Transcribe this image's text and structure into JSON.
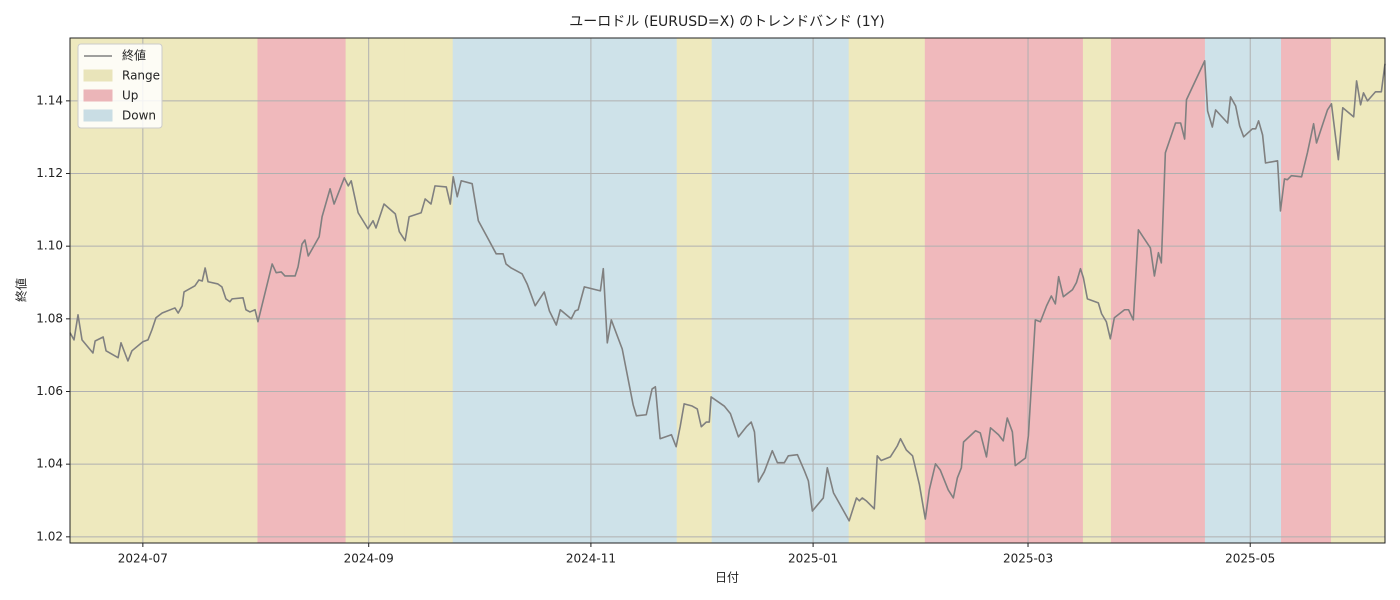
{
  "chart_data": {
    "type": "line",
    "title": "ユーロドル (EURUSD=X) のトレンドバンド (1Y)",
    "x_label": "日付",
    "y_label": "終値",
    "grid": true,
    "legend": "upper left",
    "xlim": [
      0,
      361
    ],
    "xticks": [
      {
        "value": 20,
        "label": "2024-07"
      },
      {
        "value": 82,
        "label": "2024-09"
      },
      {
        "value": 143,
        "label": "2024-11"
      },
      {
        "value": 204,
        "label": "2025-01"
      },
      {
        "value": 263,
        "label": "2025-03"
      },
      {
        "value": 324,
        "label": "2025-05"
      }
    ],
    "ylim": [
      1.0183,
      1.1573
    ],
    "yticks": [
      1.02,
      1.04,
      1.06,
      1.08,
      {
        "value": 1.1,
        "label": "1.10"
      },
      1.12,
      1.14
    ],
    "band_types": [
      {
        "name": "Range",
        "color": "#f5f0c4"
      },
      {
        "name": "Up",
        "color": "#f7bfc2"
      },
      {
        "name": "Down",
        "color": "#d4e9f0"
      }
    ],
    "bands": [
      {
        "kind": "Range",
        "start": 0,
        "end": 16.2
      },
      {
        "kind": "Range",
        "start": 16.2,
        "end": 37.1
      },
      {
        "kind": "Range",
        "start": 37.1,
        "end": 51.6
      },
      {
        "kind": "Up",
        "start": 51.6,
        "end": 75.8
      },
      {
        "kind": "Range",
        "start": 75.8,
        "end": 92.0
      },
      {
        "kind": "Range",
        "start": 92.0,
        "end": 105.2
      },
      {
        "kind": "Down",
        "start": 105.2,
        "end": 166.7
      },
      {
        "kind": "Range",
        "start": 166.7,
        "end": 176.3
      },
      {
        "kind": "Down",
        "start": 176.3,
        "end": 213.9
      },
      {
        "kind": "Range",
        "start": 213.9,
        "end": 227.4
      },
      {
        "kind": "Range",
        "start": 227.4,
        "end": 234.8
      },
      {
        "kind": "Up",
        "start": 234.8,
        "end": 278.2
      },
      {
        "kind": "Range",
        "start": 278.2,
        "end": 285.9
      },
      {
        "kind": "Up",
        "start": 285.9,
        "end": 311.7
      },
      {
        "kind": "Down",
        "start": 311.7,
        "end": 332.6
      },
      {
        "kind": "Up",
        "start": 332.6,
        "end": 346.3
      },
      {
        "kind": "Range",
        "start": 346.3,
        "end": 361
      }
    ],
    "x": [
      0,
      1.1,
      2.2,
      3.3,
      6.3,
      6.9,
      9.1,
      9.9,
      13.2,
      14.0,
      15.9,
      17.0,
      20.0,
      21.4,
      22.5,
      23.6,
      25.3,
      28.8,
      29.7,
      30.8,
      31.3,
      34.3,
      35.4,
      36.3,
      37.1,
      37.9,
      40.6,
      41.7,
      42.8,
      43.9,
      44.5,
      47.5,
      48.3,
      49.4,
      50.8,
      51.6,
      55.5,
      56.6,
      58.0,
      59.0,
      61.8,
      62.6,
      63.7,
      64.5,
      65.4,
      68.4,
      69.2,
      71.4,
      72.5,
      75.3,
      76.4,
      77.2,
      79.1,
      81.8,
      83.2,
      84.0,
      86.2,
      89.3,
      90.4,
      92.0,
      93.1,
      96.4,
      97.5,
      99.1,
      100.2,
      103.3,
      104.4,
      105.2,
      106.3,
      107.4,
      110.4,
      112.1,
      114.8,
      117.0,
      118.9,
      119.7,
      121.1,
      124.1,
      125.5,
      127.7,
      130.2,
      131.6,
      133.5,
      134.6,
      137.6,
      138.7,
      139.5,
      141.2,
      145.6,
      146.4,
      147.5,
      148.6,
      151.6,
      154.6,
      155.5,
      158.2,
      159.8,
      160.7,
      162.0,
      165.1,
      166.4,
      167.5,
      168.6,
      170.8,
      172.2,
      173.3,
      174.7,
      175.5,
      176.0,
      179.6,
      181.3,
      183.5,
      185.7,
      187.0,
      187.9,
      189.0,
      190.6,
      192.8,
      194.2,
      196.1,
      197.2,
      199.7,
      201.6,
      202.7,
      203.8,
      206.8,
      207.9,
      209.6,
      213.9,
      215.9,
      216.7,
      217.5,
      218.6,
      220.8,
      221.6,
      222.7,
      225.2,
      227.1,
      228.0,
      229.6,
      231.3,
      233.2,
      234.8,
      235.9,
      237.6,
      238.9,
      241.1,
      242.5,
      243.6,
      244.7,
      245.3,
      248.6,
      249.9,
      251.6,
      252.7,
      254.9,
      256.2,
      257.3,
      258.7,
      259.5,
      262.3,
      263.1,
      265.0,
      266.4,
      268.1,
      269.4,
      270.5,
      271.4,
      272.7,
      275.2,
      276.3,
      277.4,
      278.2,
      279.3,
      282.3,
      283.2,
      284.5,
      285.6,
      286.7,
      289.5,
      290.6,
      291.9,
      293.3,
      296.6,
      297.7,
      298.8,
      299.6,
      300.7,
      303.5,
      304.9,
      306.0,
      306.5,
      311.5,
      312.3,
      313.6,
      314.5,
      317.8,
      318.6,
      320.0,
      321.1,
      322.2,
      324.6,
      325.5,
      326.3,
      327.4,
      328.2,
      331.5,
      332.3,
      333.4,
      334.2,
      335.3,
      338.1,
      339.7,
      341.4,
      342.2,
      345.2,
      346.3,
      348.2,
      349.4,
      352.4,
      353.2,
      354.3,
      355.1,
      356.2,
      358.4,
      360.0,
      361
    ],
    "series": [
      {
        "name": "終値",
        "color": "#808080",
        "values": [
          1.0762,
          1.0742,
          1.0811,
          1.0742,
          1.0706,
          1.0739,
          1.075,
          1.0712,
          1.0693,
          1.0734,
          1.0684,
          1.0712,
          1.0737,
          1.0742,
          1.077,
          1.0803,
          1.0816,
          1.083,
          1.0816,
          1.0836,
          1.0874,
          1.0891,
          1.0907,
          1.0904,
          1.094,
          1.0902,
          1.0896,
          1.0888,
          1.0855,
          1.0847,
          1.0855,
          1.0858,
          1.0825,
          1.0819,
          1.0825,
          1.0792,
          1.0951,
          1.0927,
          1.0929,
          1.0918,
          1.0918,
          1.0943,
          1.1006,
          1.1017,
          1.0973,
          1.1026,
          1.1081,
          1.1158,
          1.1116,
          1.1188,
          1.1166,
          1.118,
          1.1092,
          1.1048,
          1.107,
          1.105,
          1.1116,
          1.1089,
          1.104,
          1.1015,
          1.1081,
          1.1092,
          1.113,
          1.1116,
          1.1166,
          1.1163,
          1.1116,
          1.1191,
          1.1136,
          1.118,
          1.1172,
          1.107,
          1.102,
          1.0979,
          1.0979,
          1.0951,
          1.094,
          1.0924,
          1.0896,
          1.0836,
          1.0874,
          1.0822,
          1.0783,
          1.0825,
          1.08,
          1.0822,
          1.0825,
          1.0888,
          1.0877,
          1.0938,
          1.0734,
          1.0797,
          1.0717,
          1.0563,
          1.0533,
          1.0536,
          1.0607,
          1.0613,
          1.047,
          1.0481,
          1.0448,
          1.0503,
          1.0566,
          1.056,
          1.0552,
          1.0503,
          1.0516,
          1.0516,
          1.0585,
          1.056,
          1.0539,
          1.0475,
          1.0503,
          1.0516,
          1.0489,
          1.0351,
          1.0379,
          1.0437,
          1.0404,
          1.0404,
          1.0423,
          1.0426,
          1.0382,
          1.0354,
          1.0271,
          1.0307,
          1.039,
          1.0321,
          1.0244,
          1.0307,
          1.0299,
          1.0307,
          1.0299,
          1.0277,
          1.0423,
          1.041,
          1.042,
          1.045,
          1.047,
          1.0439,
          1.0423,
          1.0343,
          1.0249,
          1.0329,
          1.0401,
          1.0384,
          1.0329,
          1.0307,
          1.0362,
          1.039,
          1.0461,
          1.0492,
          1.0486,
          1.042,
          1.05,
          1.0481,
          1.0464,
          1.0527,
          1.0489,
          1.0396,
          1.0417,
          1.0478,
          1.0797,
          1.0792,
          1.0836,
          1.0863,
          1.0841,
          1.0916,
          1.0861,
          1.088,
          1.09,
          1.0938,
          1.0913,
          1.0855,
          1.0844,
          1.0814,
          1.0792,
          1.0745,
          1.0803,
          1.0825,
          1.0825,
          1.0797,
          1.1045,
          1.0995,
          1.0918,
          1.0982,
          1.0954,
          1.1257,
          1.1339,
          1.1339,
          1.1295,
          1.1403,
          1.151,
          1.1372,
          1.1328,
          1.1375,
          1.1339,
          1.1411,
          1.1386,
          1.1331,
          1.1301,
          1.1323,
          1.1323,
          1.1345,
          1.1306,
          1.1229,
          1.1235,
          1.1097,
          1.1185,
          1.1183,
          1.1194,
          1.1191,
          1.1257,
          1.1337,
          1.1284,
          1.1375,
          1.1392,
          1.1238,
          1.1381,
          1.1356,
          1.1455,
          1.1389,
          1.1422,
          1.14,
          1.1425,
          1.1425,
          1.1502
        ]
      }
    ]
  }
}
